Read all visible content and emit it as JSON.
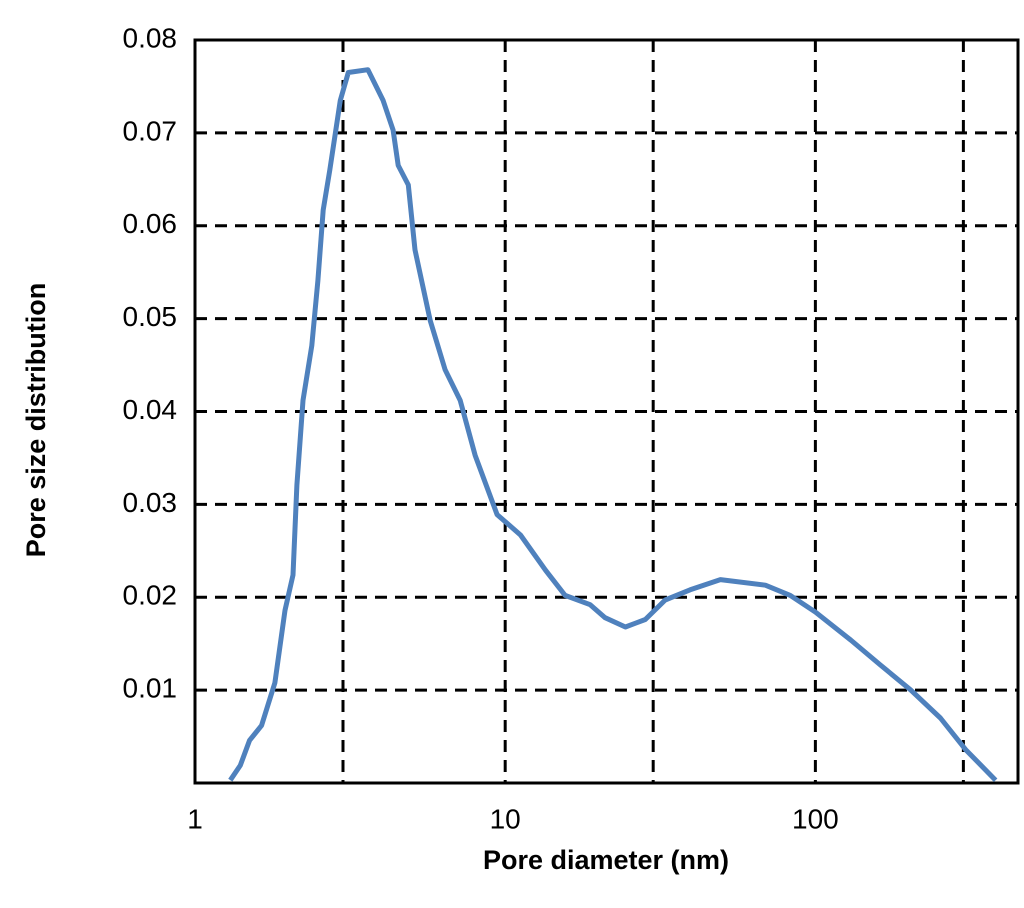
{
  "chart_data": {
    "type": "line",
    "x_label": "Pore diameter (nm)",
    "y_label": "Pore size distribution",
    "log_x": true,
    "grid": true,
    "xlim": [
      1,
      450
    ],
    "xticks": [
      1,
      10,
      100
    ],
    "xgrid": [
      3,
      10,
      30,
      100,
      300
    ],
    "ylim": [
      0,
      0.08
    ],
    "yticks": [
      0.01,
      0.02,
      0.03,
      0.04,
      0.05,
      0.06,
      0.07,
      0.08
    ],
    "series": [
      {
        "color": "#4f81bd",
        "x": [
          1.3,
          1.4,
          1.5,
          1.64,
          1.81,
          1.95,
          2.07,
          2.13,
          2.23,
          2.38,
          2.49,
          2.59,
          2.72,
          2.94,
          3.12,
          3.61,
          4.04,
          4.35,
          4.52,
          4.87,
          5.12,
          5.73,
          6.4,
          7.16,
          8.0,
          9.42,
          11.2,
          13.5,
          15.6,
          18.8,
          21.0,
          24.4,
          28.3,
          32.8,
          39.5,
          49.4,
          69.0,
          83.0,
          100,
          130,
          162,
          203,
          253,
          305,
          381
        ],
        "values": [
          0.0003,
          0.0019,
          0.0046,
          0.0062,
          0.0108,
          0.0186,
          0.0224,
          0.0321,
          0.0412,
          0.0471,
          0.0541,
          0.0617,
          0.066,
          0.0735,
          0.0765,
          0.0768,
          0.0735,
          0.0703,
          0.0665,
          0.0644,
          0.0574,
          0.0498,
          0.0445,
          0.0412,
          0.0353,
          0.0289,
          0.0267,
          0.0229,
          0.0202,
          0.0192,
          0.0178,
          0.0168,
          0.0176,
          0.0197,
          0.0208,
          0.0219,
          0.0213,
          0.0202,
          0.0184,
          0.0154,
          0.0127,
          0.01,
          0.007,
          0.0036,
          0.0003
        ]
      }
    ]
  }
}
